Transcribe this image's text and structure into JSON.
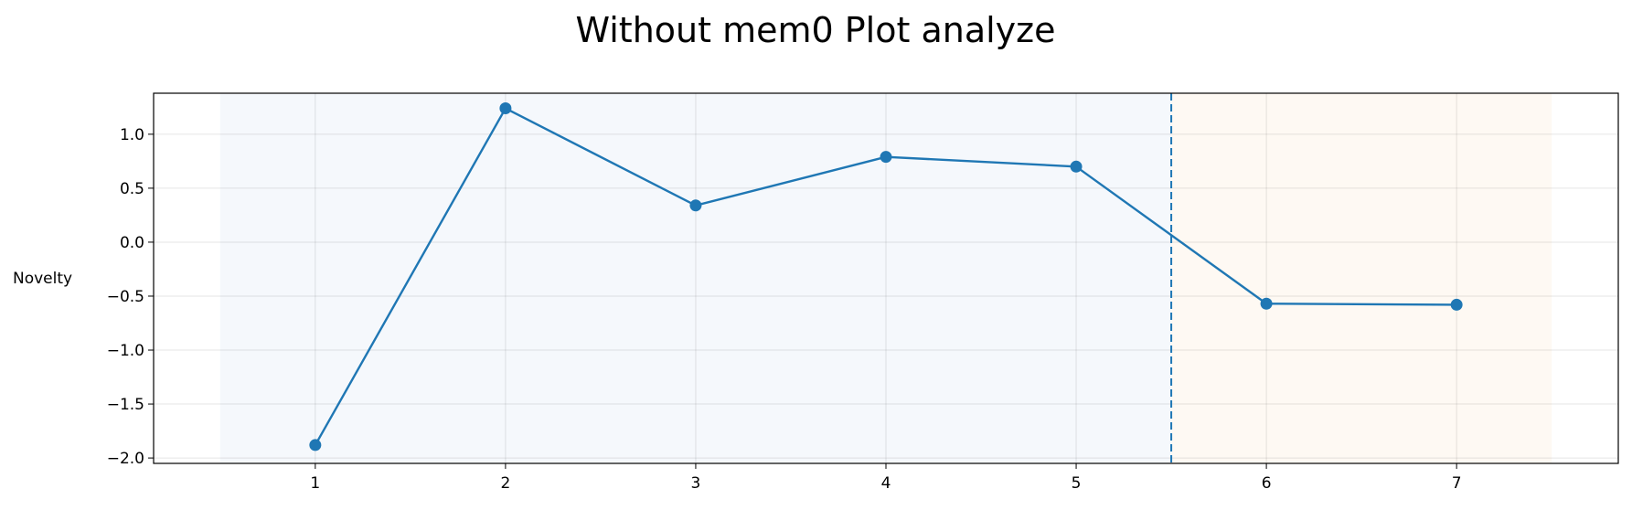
{
  "chart_data": {
    "type": "line",
    "title": "Without mem0 Plot analyze",
    "xlabel": "",
    "ylabel": "Novelty",
    "x": [
      1,
      2,
      3,
      4,
      5,
      6,
      7
    ],
    "series": [
      {
        "values": [
          -1.88,
          1.24,
          0.34,
          0.79,
          0.7,
          -0.57,
          -0.58
        ],
        "color": "#1f77b4"
      }
    ],
    "xlim": [
      0.15,
      7.85
    ],
    "ylim": [
      -2.05,
      1.38
    ],
    "xticks": [
      1,
      2,
      3,
      4,
      5,
      6,
      7
    ],
    "xtick_labels": [
      "1",
      "2",
      "3",
      "4",
      "5",
      "6",
      "7"
    ],
    "yticks": [
      1.0,
      0.5,
      0.0,
      -0.5,
      -1.0,
      -1.5,
      -2.0
    ],
    "ytick_labels": [
      "1.0",
      "0.5",
      "0.0",
      "−0.5",
      "−1.0",
      "−1.5",
      "−2.0"
    ],
    "grid": true,
    "shaded_regions": [
      {
        "x_range": [
          0.5,
          5.5
        ],
        "color": "#f5f8fc"
      },
      {
        "x_range": [
          5.5,
          7.5
        ],
        "color": "#fef9f3"
      }
    ],
    "vertical_line": {
      "x": 5.5,
      "style": "dashed",
      "color": "#1f77b4"
    }
  }
}
